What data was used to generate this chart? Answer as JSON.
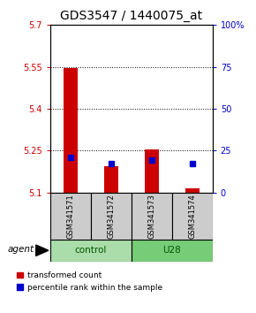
{
  "title": "GDS3547 / 1440075_at",
  "samples": [
    "GSM341571",
    "GSM341572",
    "GSM341573",
    "GSM341574"
  ],
  "group_label_control": "control",
  "group_label_U28": "U28",
  "red_values": [
    5.545,
    5.195,
    5.255,
    5.115
  ],
  "blue_values": [
    5.225,
    5.205,
    5.215,
    5.205
  ],
  "y_min": 5.1,
  "y_max": 5.7,
  "y_ticks_left": [
    5.1,
    5.25,
    5.4,
    5.55,
    5.7
  ],
  "y_ticks_right_labels": [
    "0",
    "25",
    "50",
    "75",
    "100%"
  ],
  "y_ticks_right_vals": [
    5.1,
    5.25,
    5.4,
    5.55,
    5.7
  ],
  "grid_lines": [
    5.25,
    5.4,
    5.55
  ],
  "bar_bottom": 5.1,
  "bar_width": 0.35,
  "legend_red": "transformed count",
  "legend_blue": "percentile rank within the sample",
  "agent_label": "agent",
  "title_fontsize": 10,
  "tick_fontsize": 7,
  "sample_fontsize": 6,
  "group_fontsize": 7.5,
  "legend_fontsize": 6.5,
  "agent_fontsize": 7.5,
  "blue_marker_size": 5,
  "control_color": "#aaddaa",
  "u28_color": "#77cc77",
  "gray_color": "#cccccc",
  "blue_color": "#0000cc",
  "red_color": "#cc0000"
}
